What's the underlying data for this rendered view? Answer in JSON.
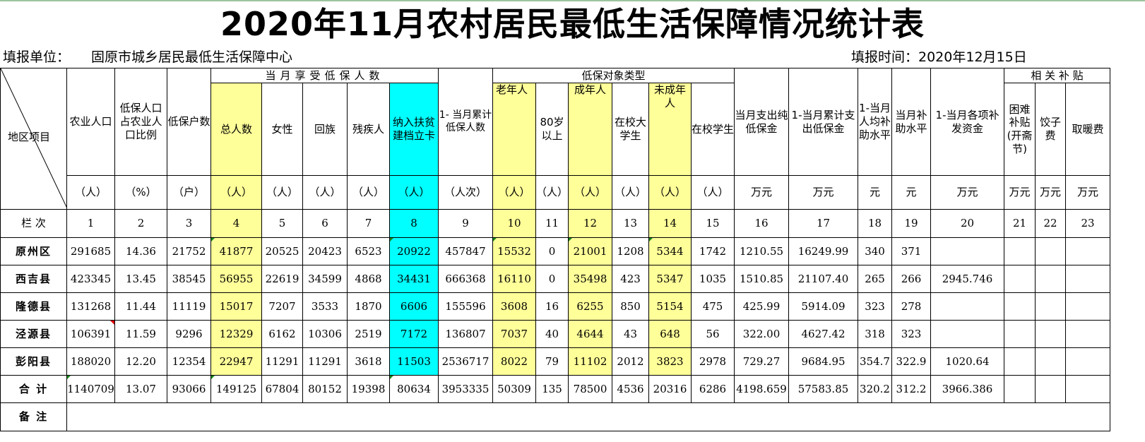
{
  "title": "2020年11月农村居民最低生活保障情况统计表",
  "unit_label": "填报单位：",
  "unit_value": "固原市城乡居民最低生活保障中心",
  "date_label": "填报时间：2020年12月15日",
  "header": {
    "region": "地区项目",
    "agri_pop": "农业人口",
    "ratio": "低保人口占农业人口比例",
    "households": "低保户数",
    "group_monthly": "当月享受低保人数",
    "total": "总人数",
    "female": "女性",
    "hui": "回族",
    "disabled": "残疾人",
    "poverty_card": "纳入扶贫建档立卡",
    "cumulative": "1- 当月累计低保人数",
    "group_types": "低保对象类型",
    "elderly": "老年人",
    "over80": "80岁以上",
    "adult": "成年人",
    "college": "在校大学生",
    "minor": "未成年人",
    "student": "在校学生",
    "pay_month": "当月支出纯低保金",
    "pay_cum": "1-当月累计支出低保金",
    "avg_sub": "1-当月人均补助水平",
    "month_level": "当月补助水平",
    "reissue": "1-当月各项补发资金",
    "group_related": "相 关 补 贴",
    "hardship": "困难补贴(开斋节)",
    "dumpling": "饺子费",
    "heating": "取暖费"
  },
  "units": [
    "（人）",
    "（%）",
    "（户）",
    "（人）",
    "（人）",
    "（人）",
    "（人）",
    "（人）",
    "（人次）",
    "（人）",
    "（人）",
    "（人）",
    "（人）",
    "（人）",
    "（人）",
    "万元",
    "万元",
    "元",
    "元",
    "万元",
    "万元",
    "万元",
    "万元"
  ],
  "col_index_label": "栏 次",
  "col_numbers": [
    "1",
    "2",
    "3",
    "4",
    "5",
    "6",
    "7",
    "8",
    "9",
    "10",
    "11",
    "12",
    "13",
    "14",
    "15",
    "16",
    "17",
    "18",
    "19",
    "20",
    "21",
    "22",
    "23"
  ],
  "rows": [
    {
      "name": "原州区",
      "values": [
        "291685",
        "14.36",
        "21752",
        "41877",
        "20525",
        "20423",
        "6523",
        "20922",
        "457847",
        "15532",
        "0",
        "21001",
        "1208",
        "5344",
        "1742",
        "1210.55",
        "16249.99",
        "340",
        "371",
        "",
        "",
        "",
        ""
      ]
    },
    {
      "name": "西吉县",
      "values": [
        "423345",
        "13.45",
        "38545",
        "56955",
        "22619",
        "34599",
        "4868",
        "34431",
        "666368",
        "16110",
        "0",
        "35498",
        "423",
        "5347",
        "1035",
        "1510.85",
        "21107.40",
        "265",
        "266",
        "2945.746",
        "",
        "",
        ""
      ]
    },
    {
      "name": "隆德县",
      "values": [
        "131268",
        "11.44",
        "11119",
        "15017",
        "7207",
        "3533",
        "1870",
        "6606",
        "155596",
        "3608",
        "16",
        "6255",
        "850",
        "5154",
        "475",
        "425.99",
        "5914.09",
        "323",
        "278",
        "",
        "",
        "",
        ""
      ]
    },
    {
      "name": "泾源县",
      "values": [
        "106391",
        "11.59",
        "9296",
        "12329",
        "6162",
        "10306",
        "2519",
        "7172",
        "136807",
        "7037",
        "40",
        "4644",
        "43",
        "648",
        "56",
        "322.00",
        "4627.42",
        "318",
        "323",
        "",
        "",
        "",
        ""
      ]
    },
    {
      "name": "彭阳县",
      "values": [
        "188020",
        "12.20",
        "12354",
        "22947",
        "11291",
        "11291",
        "3618",
        "11503",
        "2536717",
        "8022",
        "79",
        "11102",
        "2012",
        "3823",
        "2978",
        "729.27",
        "9684.95",
        "354.7",
        "322.9",
        "1020.64",
        "",
        "",
        ""
      ]
    }
  ],
  "total_row": {
    "name": "合 计",
    "values": [
      "1140709",
      "13.07",
      "93066",
      "149125",
      "67804",
      "80152",
      "19398",
      "80634",
      "3953335",
      "50309",
      "135",
      "78500",
      "4536",
      "20316",
      "6286",
      "4198.659",
      "57583.85",
      "320.2",
      "312.2",
      "3966.386",
      "",
      "",
      ""
    ]
  },
  "remarks_label": "备 注"
}
